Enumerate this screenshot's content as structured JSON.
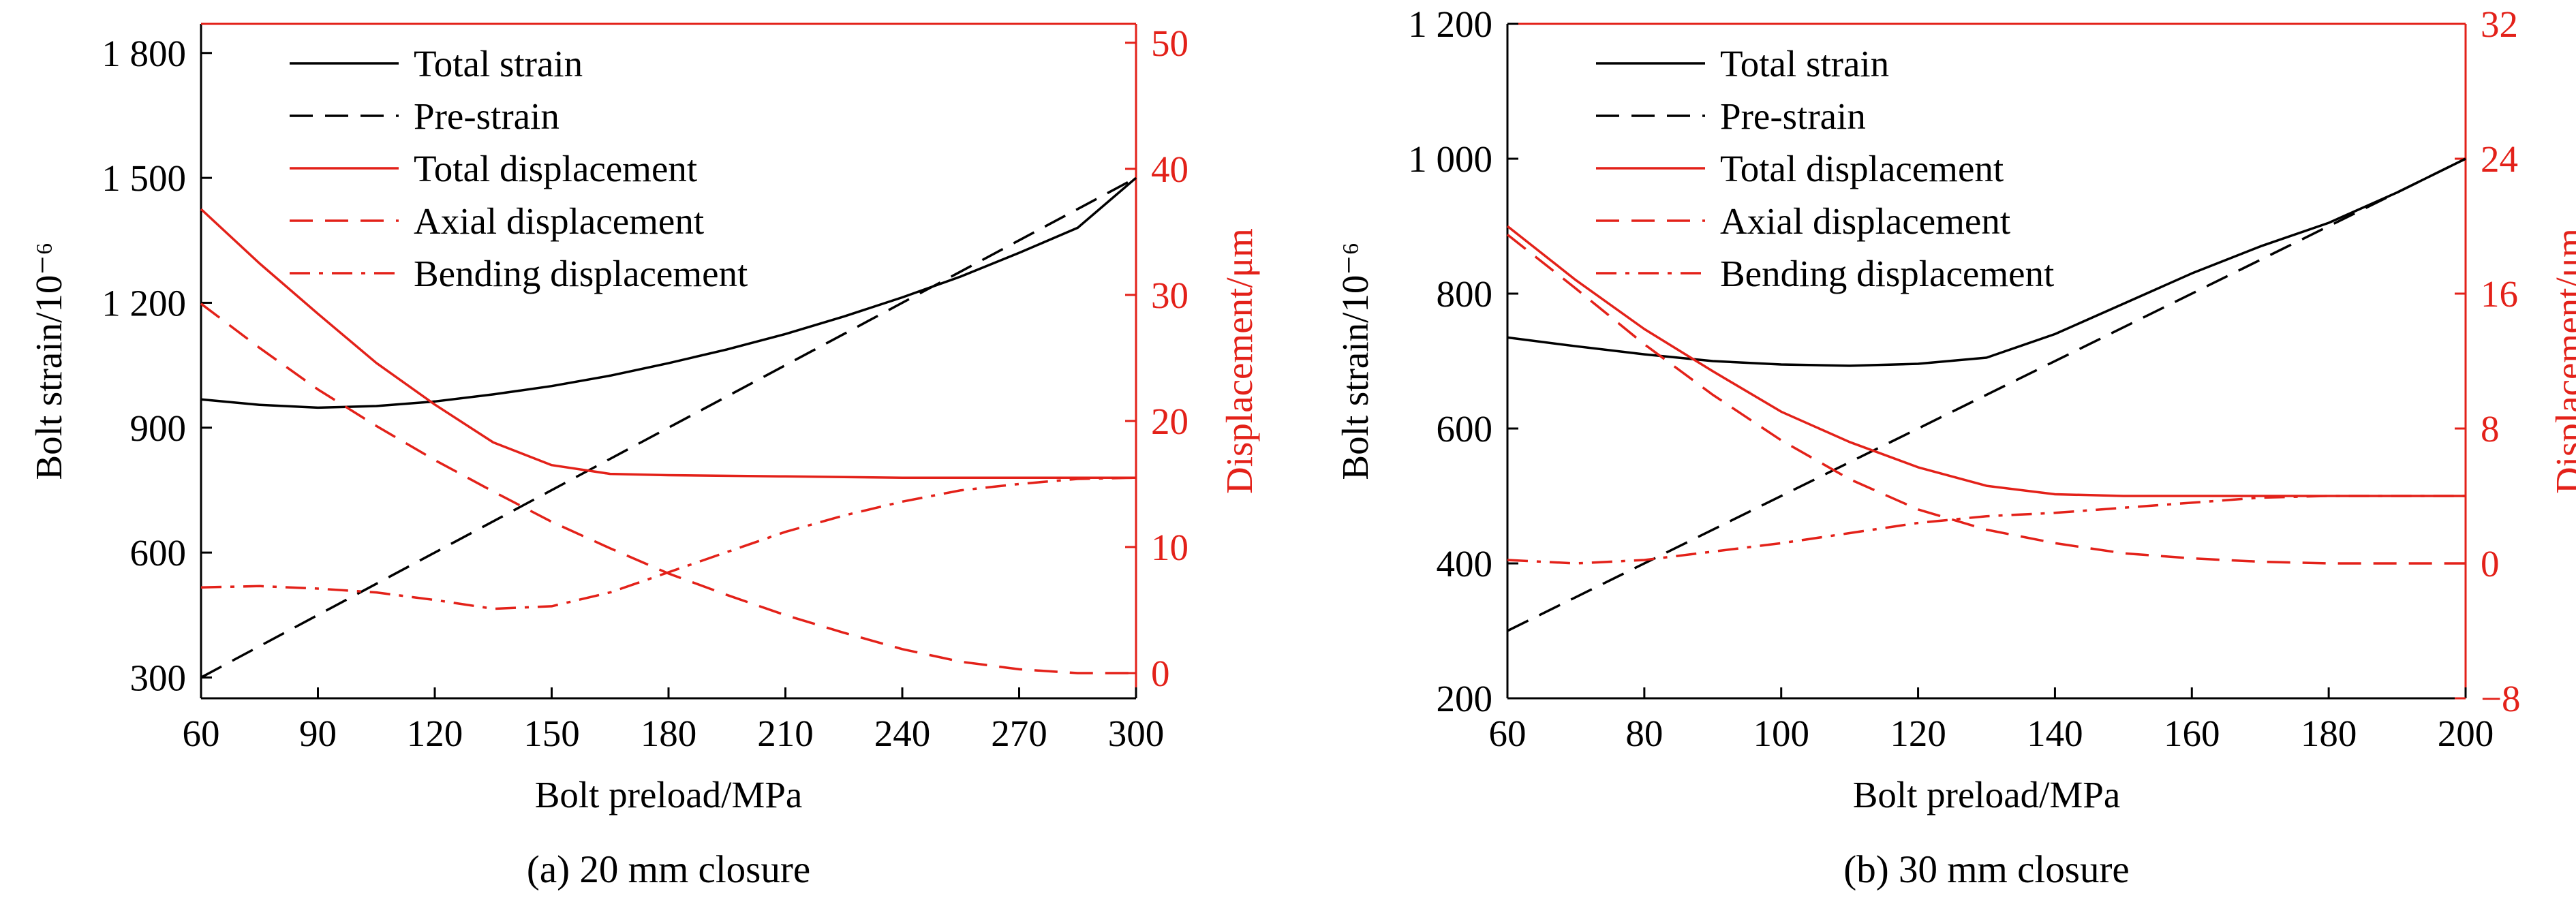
{
  "colors": {
    "left_axis": "#000000",
    "right_axis": "#e32119"
  },
  "chart_data": [
    {
      "type": "line",
      "caption": "(a) 20 mm closure",
      "xlabel": "Bolt preload/MPa",
      "ylabel": "Bolt strain/10⁻⁶",
      "y2label": "Displacement/μm",
      "xlim": [
        60,
        300
      ],
      "ylim": [
        250,
        1870
      ],
      "y2lim": [
        -2,
        51.5
      ],
      "x_ticks": [
        60,
        90,
        120,
        150,
        180,
        210,
        240,
        270,
        300
      ],
      "x_tick_labels": [
        "60",
        "90",
        "120",
        "150",
        "180",
        "210",
        "240",
        "270",
        "300"
      ],
      "y_ticks": [
        300,
        600,
        900,
        1200,
        1500,
        1800
      ],
      "y_tick_labels": [
        "300",
        "600",
        "900",
        "1 200",
        "1 500",
        "1 800"
      ],
      "y2_ticks": [
        0,
        10,
        20,
        30,
        40,
        50
      ],
      "y2_tick_labels": [
        "0",
        "10",
        "20",
        "30",
        "40",
        "50"
      ],
      "legend_position": "top-left",
      "series": [
        {
          "name": "Total strain",
          "axis": "left",
          "color": "#000000",
          "dash": "solid",
          "x": [
            60,
            75,
            90,
            105,
            120,
            135,
            150,
            165,
            180,
            195,
            210,
            225,
            240,
            255,
            270,
            285,
            300
          ],
          "y": [
            968,
            955,
            948,
            952,
            963,
            980,
            1000,
            1025,
            1055,
            1088,
            1125,
            1167,
            1213,
            1263,
            1320,
            1380,
            1500
          ]
        },
        {
          "name": "Pre-strain",
          "axis": "left",
          "color": "#000000",
          "dash": "dashed",
          "x": [
            60,
            300
          ],
          "y": [
            300,
            1500
          ]
        },
        {
          "name": "Total displacement",
          "axis": "right",
          "color": "#e32119",
          "dash": "solid",
          "x": [
            60,
            75,
            90,
            105,
            120,
            135,
            150,
            165,
            180,
            210,
            240,
            270,
            300
          ],
          "y": [
            36.8,
            32.5,
            28.5,
            24.6,
            21.3,
            18.3,
            16.5,
            15.8,
            15.7,
            15.6,
            15.5,
            15.5,
            15.5
          ]
        },
        {
          "name": "Axial displacement",
          "axis": "right",
          "color": "#e32119",
          "dash": "dashed",
          "x": [
            60,
            75,
            90,
            105,
            120,
            135,
            150,
            165,
            180,
            195,
            210,
            225,
            240,
            255,
            270,
            285,
            300
          ],
          "y": [
            29.3,
            25.8,
            22.5,
            19.6,
            16.9,
            14.4,
            12.0,
            9.9,
            7.9,
            6.2,
            4.6,
            3.2,
            1.9,
            0.9,
            0.3,
            0.0,
            0.0
          ]
        },
        {
          "name": "Bending displacement",
          "axis": "right",
          "color": "#e32119",
          "dash": "dash-dot",
          "x": [
            60,
            75,
            90,
            105,
            120,
            135,
            150,
            165,
            180,
            195,
            210,
            225,
            240,
            255,
            270,
            285,
            300
          ],
          "y": [
            6.8,
            6.9,
            6.7,
            6.4,
            5.8,
            5.1,
            5.3,
            6.4,
            8.0,
            9.6,
            11.2,
            12.5,
            13.6,
            14.5,
            15.0,
            15.4,
            15.5
          ]
        }
      ]
    },
    {
      "type": "line",
      "caption": "(b) 30 mm closure",
      "xlabel": "Bolt preload/MPa",
      "ylabel": "Bolt strain/10⁻⁶",
      "y2label": "Displacement/μm",
      "xlim": [
        60,
        200
      ],
      "ylim": [
        200,
        1200
      ],
      "y2lim": [
        -8,
        32
      ],
      "x_ticks": [
        60,
        80,
        100,
        120,
        140,
        160,
        180,
        200
      ],
      "x_tick_labels": [
        "60",
        "80",
        "100",
        "120",
        "140",
        "160",
        "180",
        "200"
      ],
      "y_ticks": [
        200,
        400,
        600,
        800,
        1000,
        1200
      ],
      "y_tick_labels": [
        "200",
        "400",
        "600",
        "800",
        "1 000",
        "1 200"
      ],
      "y2_ticks": [
        -8,
        0,
        8,
        16,
        24,
        32
      ],
      "y2_tick_labels": [
        "−8",
        "0",
        "8",
        "16",
        "24",
        "32"
      ],
      "legend_position": "top-left",
      "series": [
        {
          "name": "Total strain",
          "axis": "left",
          "color": "#000000",
          "dash": "solid",
          "x": [
            60,
            70,
            80,
            90,
            100,
            110,
            120,
            130,
            140,
            150,
            160,
            170,
            180,
            190,
            200
          ],
          "y": [
            735,
            722,
            710,
            700,
            695,
            693,
            696,
            705,
            740,
            785,
            830,
            870,
            905,
            950,
            1000
          ]
        },
        {
          "name": "Pre-strain",
          "axis": "left",
          "color": "#000000",
          "dash": "dashed",
          "x": [
            60,
            200
          ],
          "y": [
            300,
            1000
          ]
        },
        {
          "name": "Total displacement",
          "axis": "right",
          "color": "#e32119",
          "dash": "solid",
          "x": [
            60,
            70,
            80,
            90,
            100,
            110,
            120,
            130,
            140,
            150,
            160,
            170,
            180,
            190,
            200
          ],
          "y": [
            20.0,
            16.8,
            13.9,
            11.4,
            9.0,
            7.2,
            5.7,
            4.6,
            4.1,
            4.0,
            4.0,
            4.0,
            4.0,
            4.0,
            4.0
          ]
        },
        {
          "name": "Axial displacement",
          "axis": "right",
          "color": "#e32119",
          "dash": "dashed",
          "x": [
            60,
            70,
            80,
            90,
            100,
            110,
            120,
            130,
            140,
            150,
            160,
            170,
            180,
            190,
            200
          ],
          "y": [
            19.5,
            16.3,
            13.0,
            10.0,
            7.3,
            5.0,
            3.2,
            2.0,
            1.2,
            0.6,
            0.3,
            0.1,
            0.0,
            0.0,
            0.0
          ]
        },
        {
          "name": "Bending displacement",
          "axis": "right",
          "color": "#e32119",
          "dash": "dash-dot",
          "x": [
            60,
            70,
            80,
            90,
            100,
            110,
            120,
            130,
            140,
            150,
            160,
            170,
            180,
            190,
            200
          ],
          "y": [
            0.2,
            0.0,
            0.2,
            0.7,
            1.2,
            1.8,
            2.4,
            2.8,
            3.0,
            3.3,
            3.6,
            3.9,
            4.0,
            4.0,
            4.0
          ]
        }
      ]
    }
  ]
}
